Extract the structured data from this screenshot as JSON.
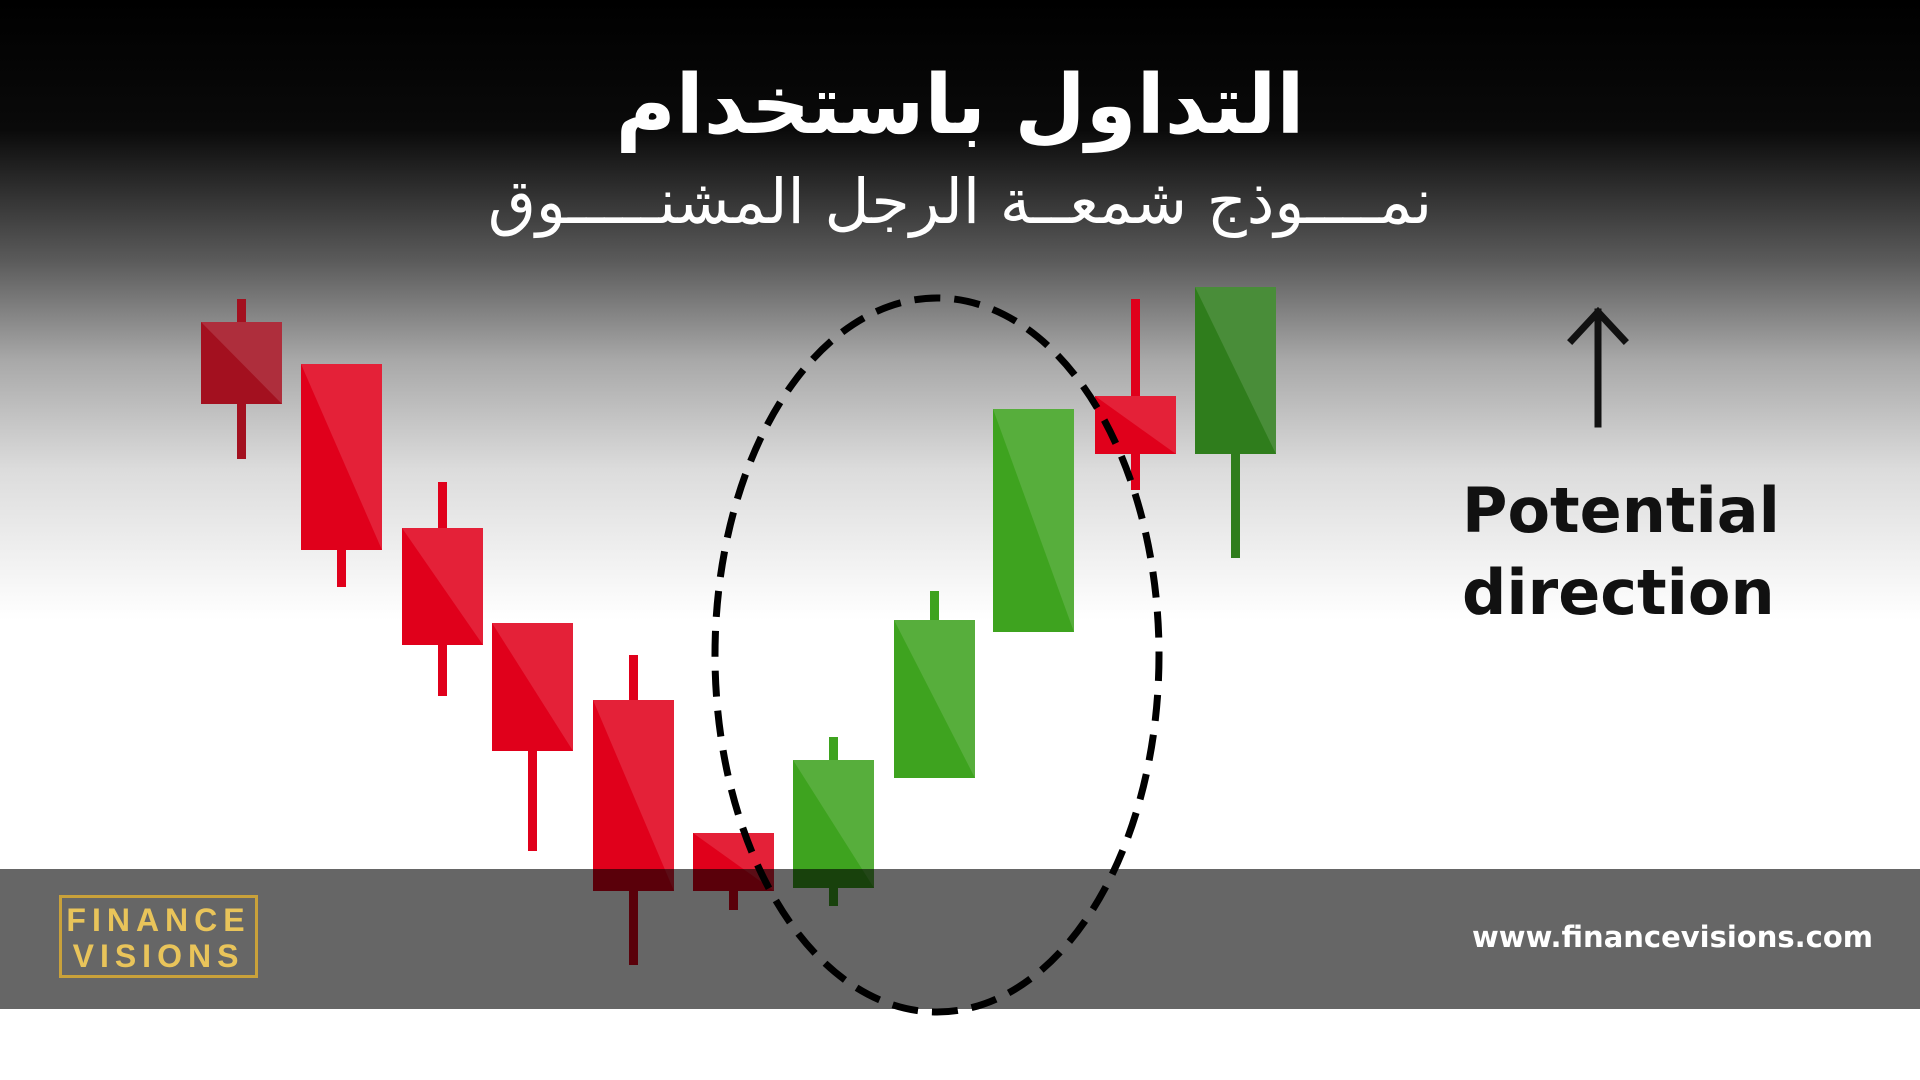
{
  "title": {
    "line1": "التداول باستخدام",
    "line2": "نمــــوذج شمعــة الرجل المشنـــــوق"
  },
  "annotation": {
    "arrow_icon": "arrow-up-icon",
    "line1": "Potential",
    "line2": "direction"
  },
  "footer": {
    "logo_line1": "FINANCE",
    "logo_line2": "VISIONS",
    "url": "www.financevisions.com"
  },
  "colors": {
    "bearish": "#e0001b",
    "bullish": "#3ea31f",
    "logo_gold": "#c9a13a",
    "footer_band": "#666666"
  }
}
